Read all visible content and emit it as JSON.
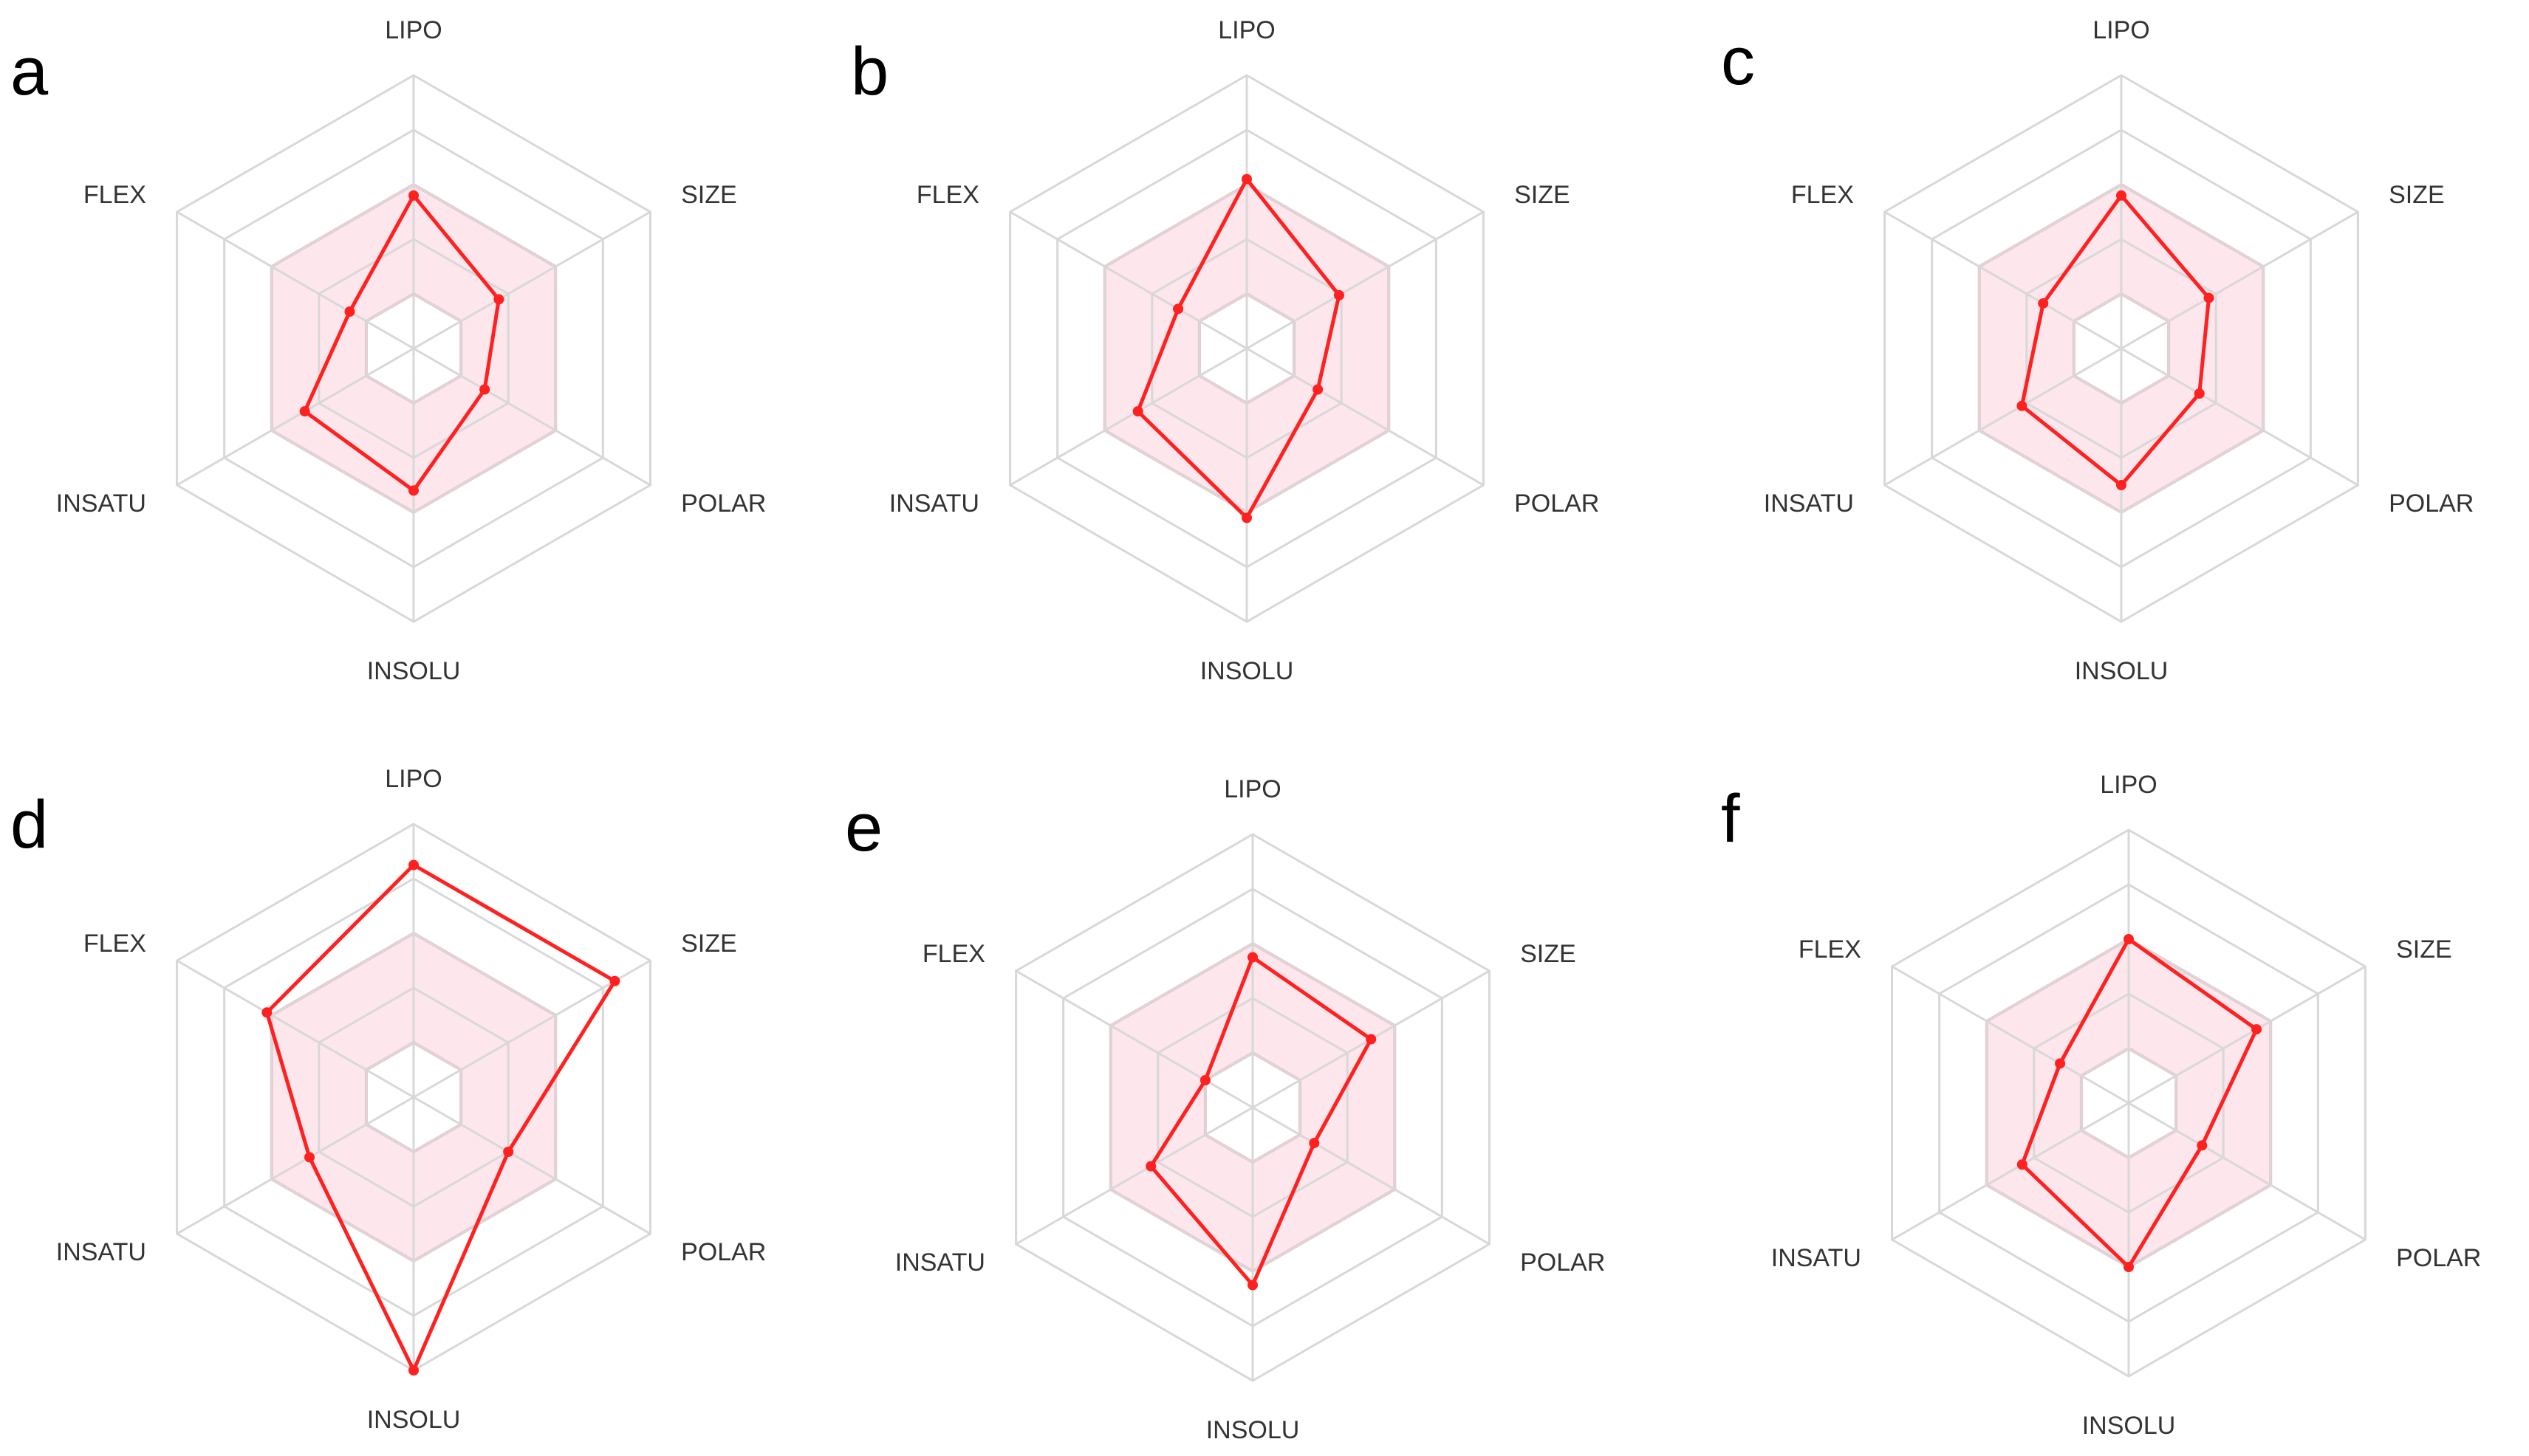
{
  "colors": {
    "series": "#ff2020",
    "optimal_zone_fill": "#fde6ec",
    "optimal_zone_stroke": "#f5b5c2",
    "grid": "#d8d8d8"
  },
  "chart_data": [
    {
      "type": "radar",
      "panel": "a",
      "axes": [
        "LIPO",
        "SIZE",
        "POLAR",
        "INSOLU",
        "INSATU",
        "FLEX"
      ],
      "range": [
        0,
        1
      ],
      "grid_levels": 5,
      "optimal_zone": [
        0.2,
        0.6
      ],
      "series": [
        {
          "values": [
            0.56,
            0.36,
            0.3,
            0.52,
            0.46,
            0.27
          ]
        }
      ]
    },
    {
      "type": "radar",
      "panel": "b",
      "axes": [
        "LIPO",
        "SIZE",
        "POLAR",
        "INSOLU",
        "INSATU",
        "FLEX"
      ],
      "range": [
        0,
        1
      ],
      "grid_levels": 5,
      "optimal_zone": [
        0.2,
        0.6
      ],
      "series": [
        {
          "values": [
            0.62,
            0.39,
            0.3,
            0.62,
            0.46,
            0.29
          ]
        }
      ]
    },
    {
      "type": "radar",
      "panel": "c",
      "axes": [
        "LIPO",
        "SIZE",
        "POLAR",
        "INSOLU",
        "INSATU",
        "FLEX"
      ],
      "range": [
        0,
        1
      ],
      "grid_levels": 5,
      "optimal_zone": [
        0.2,
        0.6
      ],
      "series": [
        {
          "values": [
            0.56,
            0.37,
            0.33,
            0.5,
            0.42,
            0.33
          ]
        }
      ]
    },
    {
      "type": "radar",
      "panel": "d",
      "axes": [
        "LIPO",
        "SIZE",
        "POLAR",
        "INSOLU",
        "INSATU",
        "FLEX"
      ],
      "range": [
        0,
        1
      ],
      "grid_levels": 5,
      "optimal_zone": [
        0.2,
        0.6
      ],
      "series": [
        {
          "values": [
            0.85,
            0.85,
            0.4,
            1.0,
            0.44,
            0.62
          ]
        }
      ]
    },
    {
      "type": "radar",
      "panel": "e",
      "axes": [
        "LIPO",
        "SIZE",
        "POLAR",
        "INSOLU",
        "INSATU",
        "FLEX"
      ],
      "range": [
        0,
        1
      ],
      "grid_levels": 5,
      "optimal_zone": [
        0.2,
        0.6
      ],
      "series": [
        {
          "values": [
            0.55,
            0.5,
            0.26,
            0.65,
            0.43,
            0.2
          ]
        }
      ]
    },
    {
      "type": "radar",
      "panel": "f",
      "axes": [
        "LIPO",
        "SIZE",
        "POLAR",
        "INSOLU",
        "INSATU",
        "FLEX"
      ],
      "range": [
        0,
        1
      ],
      "grid_levels": 5,
      "optimal_zone": [
        0.2,
        0.6
      ],
      "series": [
        {
          "values": [
            0.6,
            0.54,
            0.31,
            0.6,
            0.45,
            0.29
          ]
        }
      ]
    }
  ]
}
